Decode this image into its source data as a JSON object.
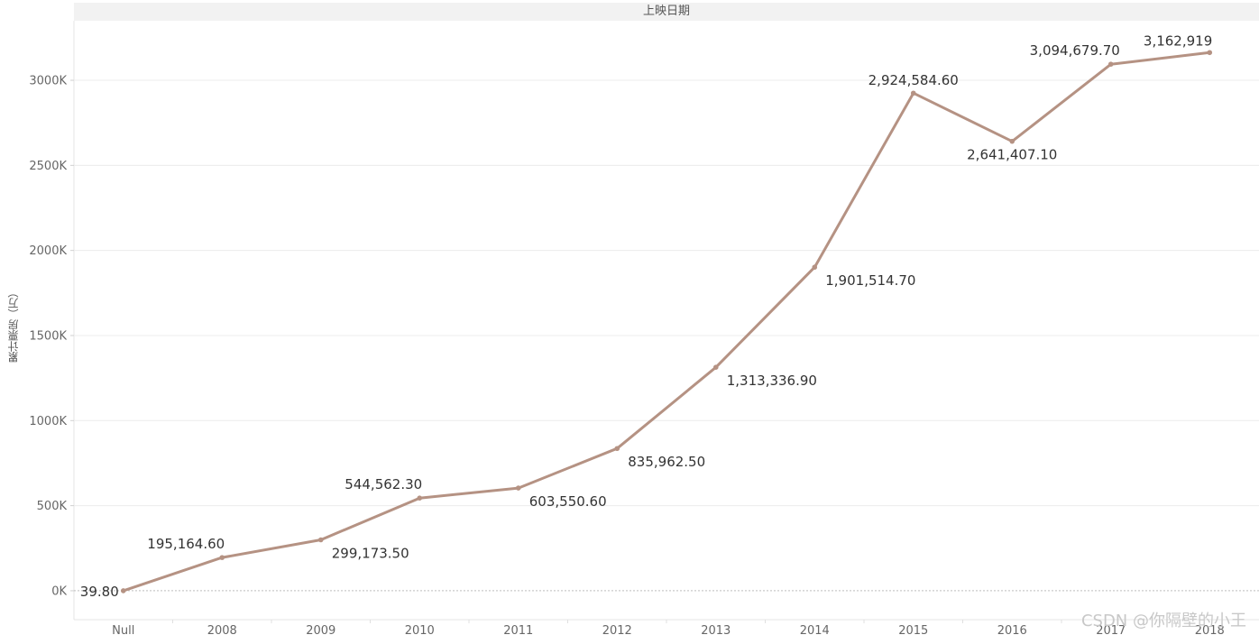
{
  "header": {
    "column_title": "上映日期"
  },
  "watermark": "CSDN @你隔壁的小王",
  "colors": {
    "line": "#b59283",
    "grid": "#ececec",
    "zero_line": "#bdbdbd"
  },
  "chart_data": {
    "type": "line",
    "xlabel": "上映日期",
    "ylabel": "累计票房（万）",
    "categories": [
      "Null",
      "2008",
      "2009",
      "2010",
      "2011",
      "2012",
      "2013",
      "2014",
      "2015",
      "2016",
      "2017",
      "2018"
    ],
    "values": [
      39.8,
      195164.6,
      299173.5,
      544562.3,
      603550.6,
      835962.5,
      1313336.9,
      1901514.7,
      2924584.6,
      2641407.1,
      3094679.7,
      3162919
    ],
    "data_labels": [
      "39.80",
      "195,164.60",
      "299,173.50",
      "544,562.30",
      "603,550.60",
      "835,962.50",
      "1,313,336.90",
      "1,901,514.70",
      "2,924,584.60",
      "2,641,407.10",
      "3,094,679.70",
      "3,162,919"
    ],
    "yticks": [
      0,
      500000,
      1000000,
      1500000,
      2000000,
      2500000,
      3000000
    ],
    "ytick_labels": [
      "0K",
      "500K",
      "1000K",
      "1500K",
      "2000K",
      "2500K",
      "3000K"
    ],
    "ylim": [
      -170000,
      3350000
    ],
    "grid": true,
    "legend": "none"
  }
}
